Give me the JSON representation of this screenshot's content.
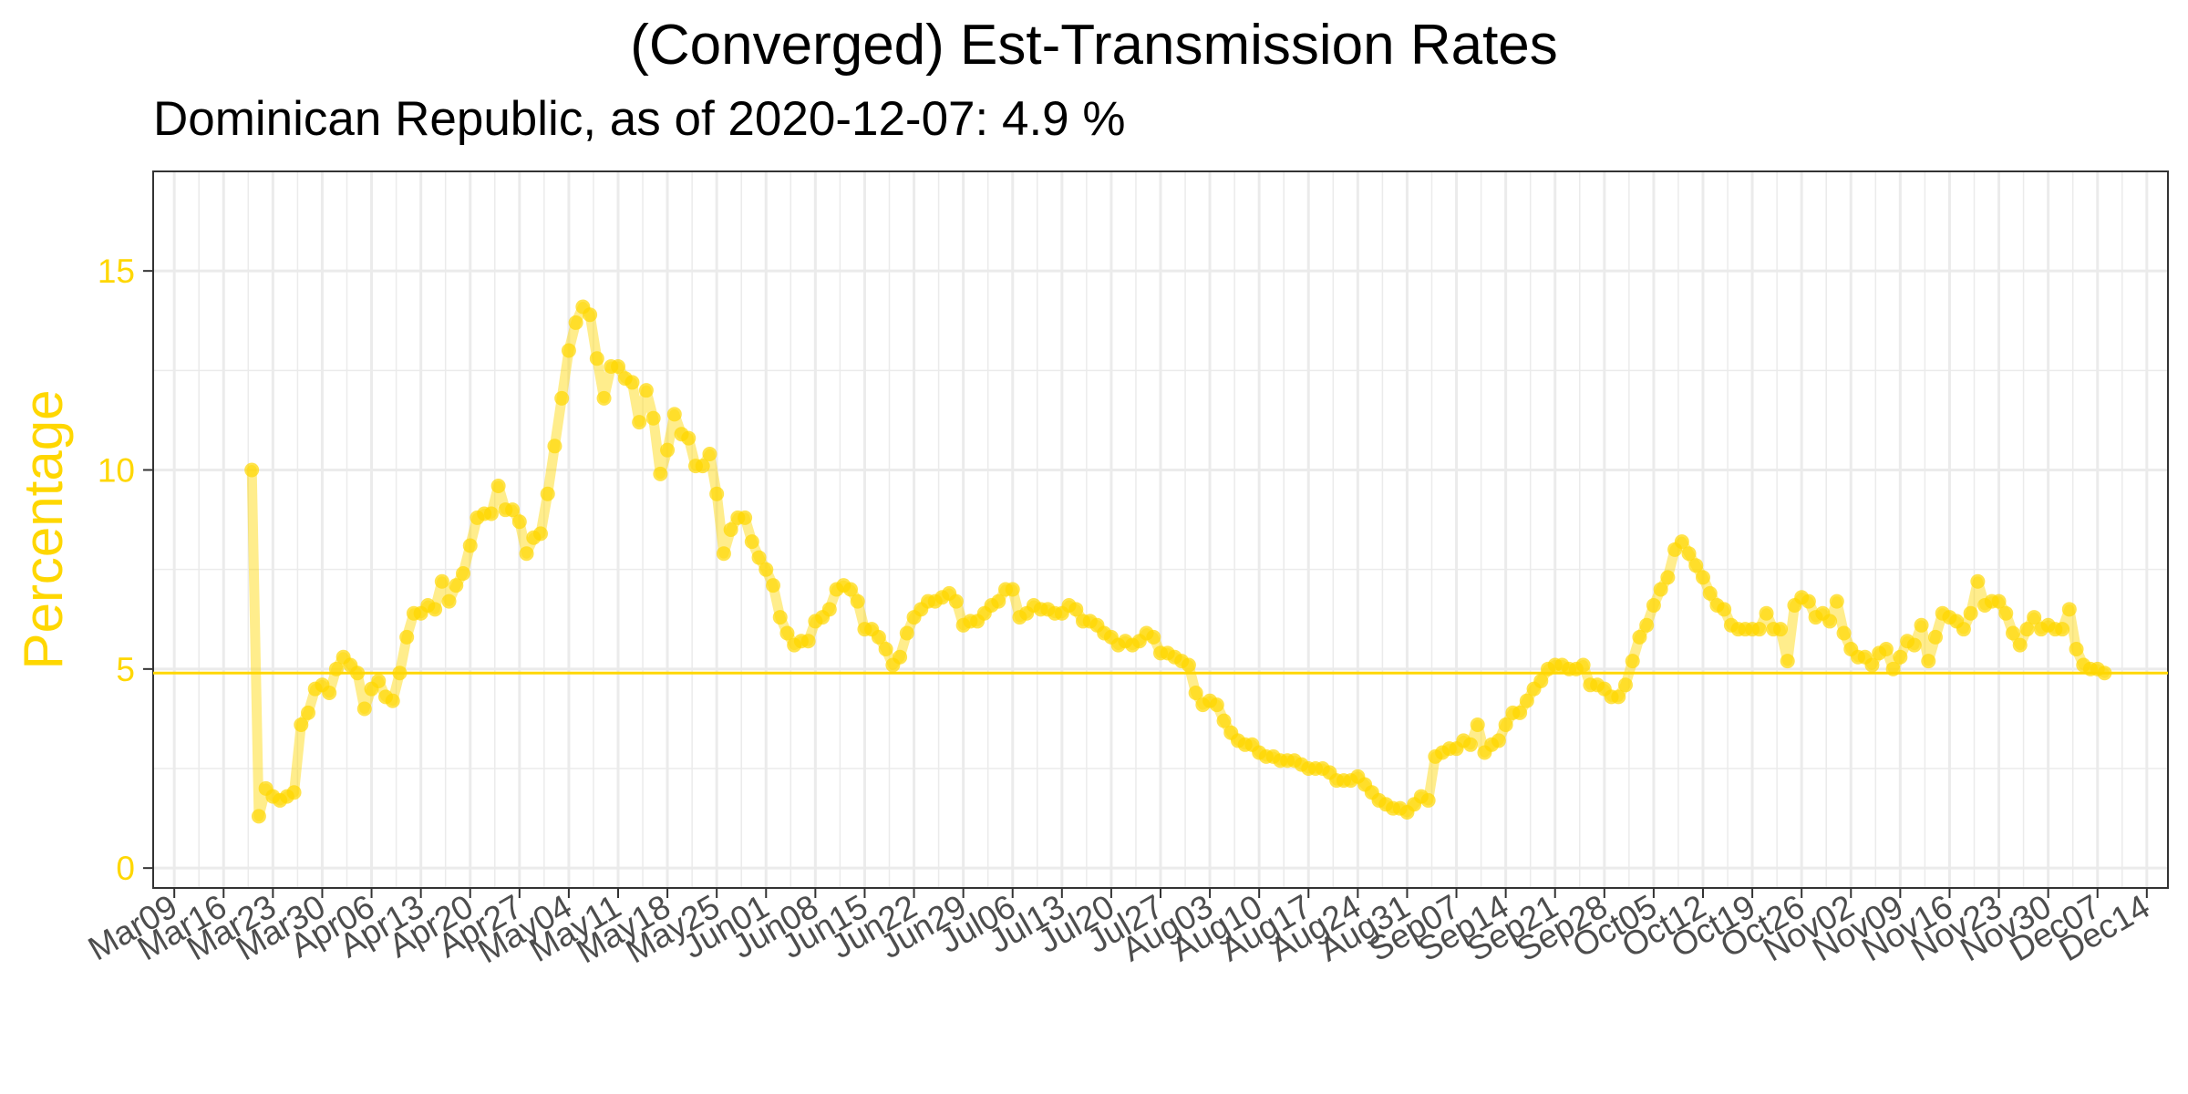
{
  "chart_data": {
    "type": "line",
    "title": "(Converged) Est-Transmission Rates",
    "subtitle": "Dominican Republic, as of 2020-12-07:  4.9 %",
    "xlabel": "",
    "ylabel": "Percentage",
    "ylim": [
      -0.5,
      17.5
    ],
    "y_ticks": [
      0,
      5,
      10,
      15
    ],
    "x_range": [
      "2020-03-06",
      "2020-12-17"
    ],
    "x_ticks": [
      {
        "date": "2020-03-09",
        "label": "Mar09"
      },
      {
        "date": "2020-03-16",
        "label": "Mar16"
      },
      {
        "date": "2020-03-23",
        "label": "Mar23"
      },
      {
        "date": "2020-03-30",
        "label": "Mar30"
      },
      {
        "date": "2020-04-06",
        "label": "Apr06"
      },
      {
        "date": "2020-04-13",
        "label": "Apr13"
      },
      {
        "date": "2020-04-20",
        "label": "Apr20"
      },
      {
        "date": "2020-04-27",
        "label": "Apr27"
      },
      {
        "date": "2020-05-04",
        "label": "May04"
      },
      {
        "date": "2020-05-11",
        "label": "May11"
      },
      {
        "date": "2020-05-18",
        "label": "May18"
      },
      {
        "date": "2020-05-25",
        "label": "May25"
      },
      {
        "date": "2020-06-01",
        "label": "Jun01"
      },
      {
        "date": "2020-06-08",
        "label": "Jun08"
      },
      {
        "date": "2020-06-15",
        "label": "Jun15"
      },
      {
        "date": "2020-06-22",
        "label": "Jun22"
      },
      {
        "date": "2020-06-29",
        "label": "Jun29"
      },
      {
        "date": "2020-07-06",
        "label": "Jul06"
      },
      {
        "date": "2020-07-13",
        "label": "Jul13"
      },
      {
        "date": "2020-07-20",
        "label": "Jul20"
      },
      {
        "date": "2020-07-27",
        "label": "Jul27"
      },
      {
        "date": "2020-08-03",
        "label": "Aug03"
      },
      {
        "date": "2020-08-10",
        "label": "Aug10"
      },
      {
        "date": "2020-08-17",
        "label": "Aug17"
      },
      {
        "date": "2020-08-24",
        "label": "Aug24"
      },
      {
        "date": "2020-08-31",
        "label": "Aug31"
      },
      {
        "date": "2020-09-07",
        "label": "Sep07"
      },
      {
        "date": "2020-09-14",
        "label": "Sep14"
      },
      {
        "date": "2020-09-21",
        "label": "Sep21"
      },
      {
        "date": "2020-09-28",
        "label": "Sep28"
      },
      {
        "date": "2020-10-05",
        "label": "Oct05"
      },
      {
        "date": "2020-10-12",
        "label": "Oct12"
      },
      {
        "date": "2020-10-19",
        "label": "Oct19"
      },
      {
        "date": "2020-10-26",
        "label": "Oct26"
      },
      {
        "date": "2020-11-02",
        "label": "Nov02"
      },
      {
        "date": "2020-11-09",
        "label": "Nov09"
      },
      {
        "date": "2020-11-16",
        "label": "Nov16"
      },
      {
        "date": "2020-11-23",
        "label": "Nov23"
      },
      {
        "date": "2020-11-30",
        "label": "Nov30"
      },
      {
        "date": "2020-12-07",
        "label": "Dec07"
      },
      {
        "date": "2020-12-14",
        "label": "Dec14"
      }
    ],
    "hline": 4.9,
    "grid": true,
    "colors": {
      "series": "#FFD700",
      "grid": "#EBEBEB",
      "panel_border": "#333333",
      "tick_label": "#4d4d4d"
    },
    "series": [
      {
        "start": "2020-03-20",
        "interval_days": 1,
        "values": [
          10.0,
          1.3,
          2.0,
          1.8,
          1.7,
          1.8,
          1.9,
          3.6,
          3.9,
          4.5,
          4.6,
          4.4,
          5.0,
          5.3,
          5.1,
          4.9,
          4.0,
          4.5,
          4.7,
          4.3,
          4.2,
          4.9,
          5.8,
          6.4,
          6.4,
          6.6,
          6.5,
          7.2,
          6.7,
          7.1,
          7.4,
          8.1,
          8.8,
          8.9,
          8.9,
          9.6,
          9.0,
          9.0,
          8.7,
          7.9,
          8.3,
          8.4,
          9.4,
          10.6,
          11.8,
          13.0,
          13.7,
          14.1,
          13.9,
          12.8,
          11.8,
          12.6,
          12.6,
          12.3,
          12.2,
          11.2,
          12.0,
          11.3,
          9.9,
          10.5,
          11.4,
          10.9,
          10.8,
          10.1,
          10.1,
          10.4,
          9.4,
          7.9,
          8.5,
          8.8,
          8.8,
          8.2,
          7.8,
          7.5,
          7.1,
          6.3,
          5.9,
          5.6,
          5.7,
          5.7,
          6.2,
          6.3,
          6.5,
          7.0,
          7.1,
          7.0,
          6.7,
          6.0,
          6.0,
          5.8,
          5.5,
          5.1,
          5.3,
          5.9,
          6.3,
          6.5,
          6.7,
          6.7,
          6.8,
          6.9,
          6.7,
          6.1,
          6.2,
          6.2,
          6.4,
          6.6,
          6.7,
          7.0,
          7.0,
          6.3,
          6.4,
          6.6,
          6.5,
          6.5,
          6.4,
          6.4,
          6.6,
          6.5,
          6.2,
          6.2,
          6.1,
          5.9,
          5.8,
          5.6,
          5.7,
          5.6,
          5.7,
          5.9,
          5.8,
          5.4,
          5.4,
          5.3,
          5.2,
          5.1,
          4.4,
          4.1,
          4.2,
          4.1,
          3.7,
          3.4,
          3.2,
          3.1,
          3.1,
          2.9,
          2.8,
          2.8,
          2.7,
          2.7,
          2.7,
          2.6,
          2.5,
          2.5,
          2.5,
          2.4,
          2.2,
          2.2,
          2.2,
          2.3,
          2.1,
          1.9,
          1.7,
          1.6,
          1.5,
          1.5,
          1.4,
          1.6,
          1.8,
          1.7,
          2.8,
          2.9,
          3.0,
          3.0,
          3.2,
          3.1,
          3.6,
          2.9,
          3.1,
          3.2,
          3.6,
          3.9,
          3.9,
          4.2,
          4.5,
          4.7,
          5.0,
          5.1,
          5.1,
          5.0,
          5.0,
          5.1,
          4.6,
          4.6,
          4.5,
          4.3,
          4.3,
          4.6,
          5.2,
          5.8,
          6.1,
          6.6,
          7.0,
          7.3,
          8.0,
          8.2,
          7.9,
          7.6,
          7.3,
          6.9,
          6.6,
          6.5,
          6.1,
          6.0,
          6.0,
          6.0,
          6.0,
          6.4,
          6.0,
          6.0,
          5.2,
          6.6,
          6.8,
          6.7,
          6.3,
          6.4,
          6.2,
          6.7,
          5.9,
          5.5,
          5.3,
          5.3,
          5.1,
          5.4,
          5.5,
          5.0,
          5.3,
          5.7,
          5.6,
          6.1,
          5.2,
          5.8,
          6.4,
          6.3,
          6.2,
          6.0,
          6.4,
          7.2,
          6.6,
          6.7,
          6.7,
          6.4,
          5.9,
          5.6,
          6.0,
          6.3,
          6.0,
          6.1,
          6.0,
          6.0,
          6.5,
          5.5,
          5.1,
          5.0,
          5.0,
          4.9
        ]
      }
    ]
  }
}
